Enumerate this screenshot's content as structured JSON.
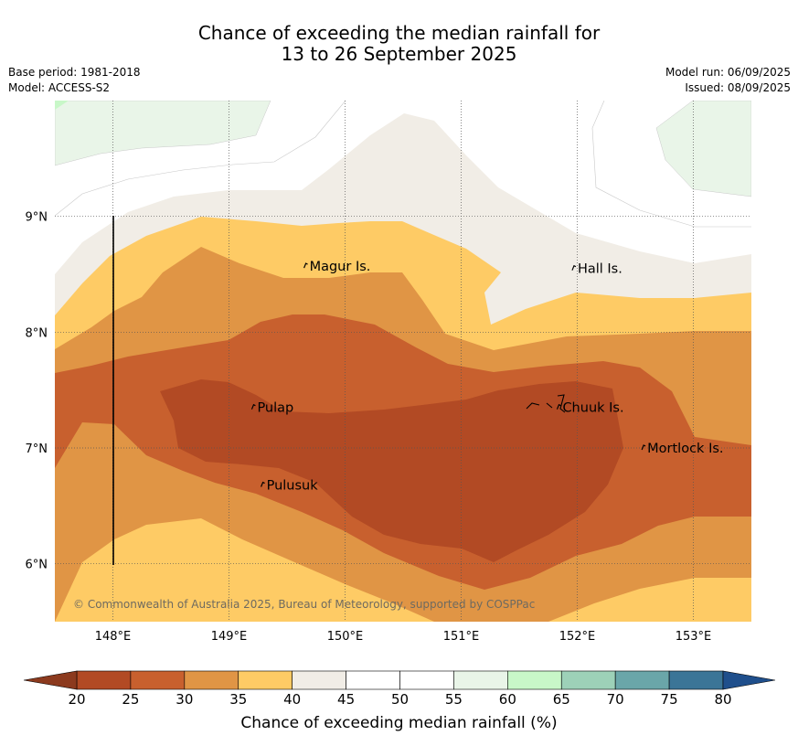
{
  "title": {
    "line1": "Chance of exceeding the median rainfall for",
    "line2": "13 to 26 September 2025"
  },
  "info": {
    "base_period": "Base period: 1981-2018",
    "model": "Model: ACCESS-S2",
    "model_run": "Model run: 06/09/2025",
    "issued": "Issued: 08/09/2025"
  },
  "map": {
    "lat_range": [
      5.5,
      10.0
    ],
    "lon_range": [
      147.5,
      153.5
    ],
    "lat_ticks": [
      {
        "value": 6,
        "label": "6°N"
      },
      {
        "value": 7,
        "label": "7°N"
      },
      {
        "value": 8,
        "label": "8°N"
      },
      {
        "value": 9,
        "label": "9°N"
      }
    ],
    "lon_ticks": [
      {
        "value": 148,
        "label": "148°E"
      },
      {
        "value": 149,
        "label": "149°E"
      },
      {
        "value": 150,
        "label": "150°E"
      },
      {
        "value": 151,
        "label": "151°E"
      },
      {
        "value": 152,
        "label": "152°E"
      },
      {
        "value": 153,
        "label": "153°E"
      }
    ],
    "places": [
      {
        "name": "Magur Is.",
        "lon": 149.67,
        "lat": 8.57
      },
      {
        "name": "Hall Is.",
        "lon": 151.98,
        "lat": 8.55
      },
      {
        "name": "Pulap",
        "lon": 149.22,
        "lat": 7.35
      },
      {
        "name": "Chuuk Is.",
        "lon": 151.85,
        "lat": 7.35
      },
      {
        "name": "Mortlock Is.",
        "lon": 152.58,
        "lat": 7.0
      },
      {
        "name": "Pulusuk",
        "lon": 149.3,
        "lat": 6.68
      }
    ],
    "copyright": "© Commonwealth of Australia 2025, Bureau of Meteorology, supported by COSPPac",
    "band_colors": {
      "20-25": "#b24a24",
      "25-30": "#c8602e",
      "30-35": "#e09545",
      "35-40": "#fecb65",
      "40-45": "#f1ede6",
      "45-55": "#ffffff",
      "55-60": "#e9f5e8",
      "60-65": "#c8f7c8"
    }
  },
  "colorbar": {
    "levels": [
      20,
      25,
      30,
      35,
      40,
      45,
      50,
      55,
      60,
      65,
      70,
      75,
      80
    ],
    "colors": [
      "#b24a24",
      "#c8602e",
      "#e09545",
      "#fecb65",
      "#f1ede6",
      "#ffffff",
      "#ffffff",
      "#e9f5e8",
      "#c8f7c8",
      "#9dd1b8",
      "#6aa6a9",
      "#3b7597"
    ],
    "under_color": "#8c3a1e",
    "over_color": "#1f4f8c",
    "label": "Chance of exceeding median rainfall (%)"
  }
}
